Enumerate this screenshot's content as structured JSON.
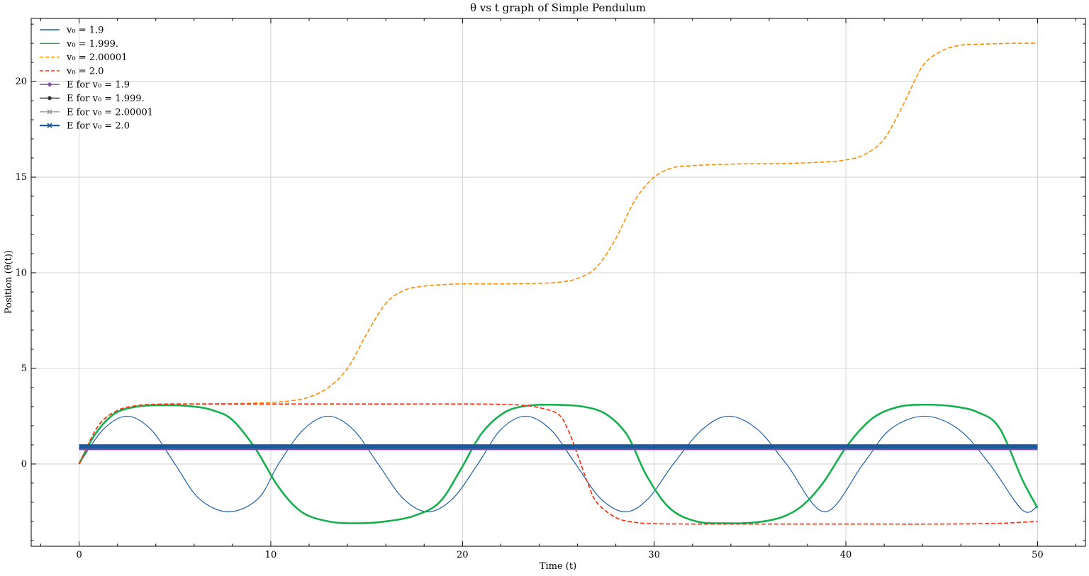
{
  "chart_data": {
    "type": "line",
    "title": "θ vs t graph of Simple Pendulum",
    "xlabel": "Time (t)",
    "ylabel": "Position (θ(t))",
    "xlim": [
      -2.5,
      52.5
    ],
    "ylim": [
      -4.3,
      23.3
    ],
    "xticks": [
      0,
      10,
      20,
      30,
      40,
      50
    ],
    "yticks": [
      0,
      5,
      10,
      15,
      20
    ],
    "grid": true,
    "legend_position": "top-left",
    "series": [
      {
        "name": "v₀ = 1.9",
        "color": "#1f5fa8",
        "style": "solid",
        "marker": "none",
        "x": [
          0,
          1.25,
          2.5,
          3.75,
          5.0,
          6.25,
          7.8,
          9.35,
          10.4,
          11.7,
          13.0,
          14.3,
          15.6,
          16.9,
          18.2,
          19.5,
          20.8,
          22.0,
          23.3,
          24.6,
          25.9,
          27.2,
          28.5,
          29.7,
          31.0,
          32.5,
          33.9,
          35.4,
          36.9,
          38.9,
          40.9,
          42.3,
          44.1,
          45.9,
          47.5,
          49.2,
          50.0
        ],
        "y": [
          0,
          1.8,
          2.5,
          1.8,
          0,
          -1.8,
          -2.5,
          -1.8,
          0,
          1.8,
          2.5,
          1.8,
          0,
          -1.8,
          -2.5,
          -1.8,
          0,
          1.8,
          2.5,
          1.8,
          0,
          -1.8,
          -2.5,
          -1.8,
          0,
          1.8,
          2.5,
          1.8,
          0,
          -2.5,
          0,
          1.8,
          2.5,
          1.8,
          0,
          -2.4,
          -2.2
        ]
      },
      {
        "name": "v₀ = 1.999.",
        "color": "#17b04f",
        "style": "solid",
        "marker": "none",
        "x": [
          0,
          0.8,
          1.8,
          3.0,
          4.5,
          6.0,
          7.0,
          8.0,
          9.2,
          10.4,
          11.6,
          13.0,
          14.5,
          16.0,
          17.5,
          18.8,
          19.9,
          21.0,
          22.2,
          23.4,
          24.8,
          26.3,
          27.5,
          28.6,
          29.6,
          30.8,
          32.2,
          33.8,
          35.3,
          36.6,
          37.7,
          38.8,
          40.1,
          41.4,
          42.8,
          44.3,
          45.7,
          46.9,
          48.0,
          49.2,
          50.0
        ],
        "y": [
          0,
          1.5,
          2.6,
          3.0,
          3.08,
          3.0,
          2.8,
          2.3,
          0.8,
          -1.2,
          -2.5,
          -3.0,
          -3.1,
          -3.0,
          -2.7,
          -2.0,
          -0.3,
          1.6,
          2.7,
          3.05,
          3.1,
          3.0,
          2.6,
          1.5,
          -0.6,
          -2.3,
          -3.0,
          -3.1,
          -3.05,
          -2.8,
          -2.2,
          -1.0,
          1.0,
          2.4,
          3.0,
          3.1,
          3.0,
          2.7,
          1.9,
          -0.8,
          -2.3
        ]
      },
      {
        "name": "v₀ = 2.00001",
        "color": "#ff8c00",
        "style": "dashed",
        "marker": "none",
        "x": [
          0,
          1,
          2,
          3,
          4,
          5,
          6,
          7,
          8,
          9,
          10,
          11,
          12,
          13,
          14,
          15,
          16,
          17,
          18,
          19,
          20,
          21,
          22,
          23,
          24,
          25,
          26,
          27,
          28,
          29,
          30,
          31,
          32,
          33,
          34,
          35,
          36,
          37,
          38,
          39,
          40,
          41,
          42,
          43,
          44,
          45,
          46,
          47,
          48,
          49,
          50
        ],
        "y": [
          0,
          2.0,
          2.8,
          3.05,
          3.12,
          3.14,
          3.14,
          3.15,
          3.16,
          3.18,
          3.22,
          3.3,
          3.5,
          4.0,
          5.0,
          6.8,
          8.4,
          9.1,
          9.3,
          9.38,
          9.42,
          9.42,
          9.42,
          9.43,
          9.45,
          9.5,
          9.7,
          10.3,
          11.8,
          13.8,
          15.0,
          15.5,
          15.6,
          15.65,
          15.68,
          15.7,
          15.7,
          15.72,
          15.75,
          15.8,
          15.9,
          16.2,
          17.0,
          18.8,
          20.8,
          21.6,
          21.9,
          21.95,
          21.98,
          22.0,
          22.0
        ]
      },
      {
        "name": "v₀ = 2.0",
        "color": "#ff2a0a",
        "style": "dashed",
        "marker": "none",
        "x": [
          0,
          1,
          2,
          3,
          4,
          5,
          7,
          10,
          15,
          20,
          22,
          23,
          24,
          25,
          25.5,
          26,
          26.5,
          27,
          28,
          29,
          30,
          32,
          35,
          40,
          45,
          48,
          50
        ],
        "y": [
          0,
          2.0,
          2.8,
          3.05,
          3.12,
          3.14,
          3.14,
          3.14,
          3.14,
          3.14,
          3.12,
          3.08,
          2.95,
          2.6,
          1.8,
          0.5,
          -0.9,
          -2.0,
          -2.8,
          -3.05,
          -3.12,
          -3.14,
          -3.14,
          -3.14,
          -3.14,
          -3.1,
          -3.0
        ]
      },
      {
        "name": "E for v₀ = 1.9",
        "color": "#7b52a6",
        "style": "solid",
        "marker": "diamond",
        "x": [
          0,
          50
        ],
        "y": [
          0.8,
          0.8
        ]
      },
      {
        "name": "E for v₀ = 1.999.",
        "color": "#333333",
        "style": "solid",
        "marker": "circle",
        "x": [
          0,
          50
        ],
        "y": [
          0.9,
          0.9
        ]
      },
      {
        "name": "E for v₀ = 2.00001",
        "color": "#9a9a9a",
        "style": "solid",
        "marker": "x",
        "x": [
          0,
          50
        ],
        "y": [
          0.9,
          0.9
        ]
      },
      {
        "name": "E for v₀ = 2.0",
        "color": "#1a5a9a",
        "style": "solid",
        "marker": "x",
        "x": [
          0,
          50
        ],
        "y": [
          0.92,
          0.92
        ]
      }
    ]
  }
}
